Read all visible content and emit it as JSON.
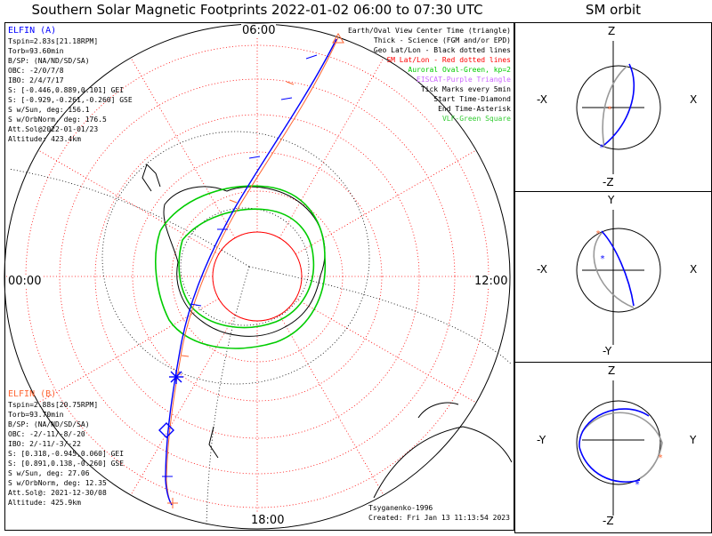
{
  "title": "Southern Solar Magnetic Footprints 2022-01-02 06:00 to 07:30 UTC",
  "orbit_title": "SM orbit",
  "clock": {
    "top": "06:00",
    "left": "00:00",
    "right": "12:00",
    "bottom": "18:00"
  },
  "elfin_a": {
    "header": "ELFIN (A)",
    "lines": [
      "Tspin=2.83s[21.18RPM]",
      "Torb=93.60min",
      "B/SP: (NA/ND/SD/SA)",
      "OBC: -2/0/7/8",
      "IBO: 2/4/7/17",
      "S: [-0.446,0.889,0.101] GEI",
      "S: [-0.929,-0.261,-0.260] GSE",
      "S w/Sun, deg: 156.1",
      "S w/OrbNorm, deg: 176.5",
      "Att.Sol@2022-01-01/23",
      "Altitude: 423.4km"
    ],
    "color": "#0000ff"
  },
  "elfin_b": {
    "header": "ELFIN (B)",
    "lines": [
      "Tspin=2.88s[20.75RPM]",
      "Torb=93.70min",
      "B/SP: (NA/ND/SD/SA)",
      "OBC: -2/-11/-8/-20",
      "IBO: 2/-11/-3/-22",
      "S: [0.318,-0.945,0.060] GEI",
      "S: [0.891,0.138,-0.260] GSE",
      "S w/Sun, deg: 27.06",
      "S w/OrbNorm, deg: 12.35",
      "Att.Sol@: 2021-12-30/08",
      "Altitude: 425.9km"
    ],
    "color": "#ff6633"
  },
  "legend": [
    {
      "text": "Earth/Oval View Center Time (triangle)",
      "color": "#000000"
    },
    {
      "text": "Thick - Science (FGM and/or EPD)",
      "color": "#000000"
    },
    {
      "text": "Geo Lat/Lon - Black dotted lines",
      "color": "#000000"
    },
    {
      "text": "SM Lat/Lon - Red dotted lines",
      "color": "#ff0000"
    },
    {
      "text": "Auroral Oval-Green, kp=2",
      "color": "#00cc00"
    },
    {
      "text": "EISCAT-Purple Triangle",
      "color": "#cc66ff"
    },
    {
      "text": "Tick Marks every 5min",
      "color": "#000000"
    },
    {
      "text": "Start Time-Diamond",
      "color": "#000000"
    },
    {
      "text": "End Time-Asterisk",
      "color": "#000000"
    },
    {
      "text": "VLF-Green Square",
      "color": "#33cc33"
    }
  ],
  "credits": [
    "Tsyganenko-1996",
    "Created: Fri Jan 13 11:13:54 2023"
  ],
  "orbit_panels": [
    {
      "top": "Z",
      "bottom": "-Z",
      "left": "-X",
      "right": "X"
    },
    {
      "top": "Y",
      "bottom": "-Y",
      "left": "-X",
      "right": "X"
    },
    {
      "top": "Z",
      "bottom": "-Z",
      "left": "-Y",
      "right": "Y"
    }
  ],
  "colors": {
    "elfin_a": "#0000ff",
    "elfin_b": "#ff6633",
    "oval": "#00cc00",
    "sm_grid": "#ff0000"
  }
}
